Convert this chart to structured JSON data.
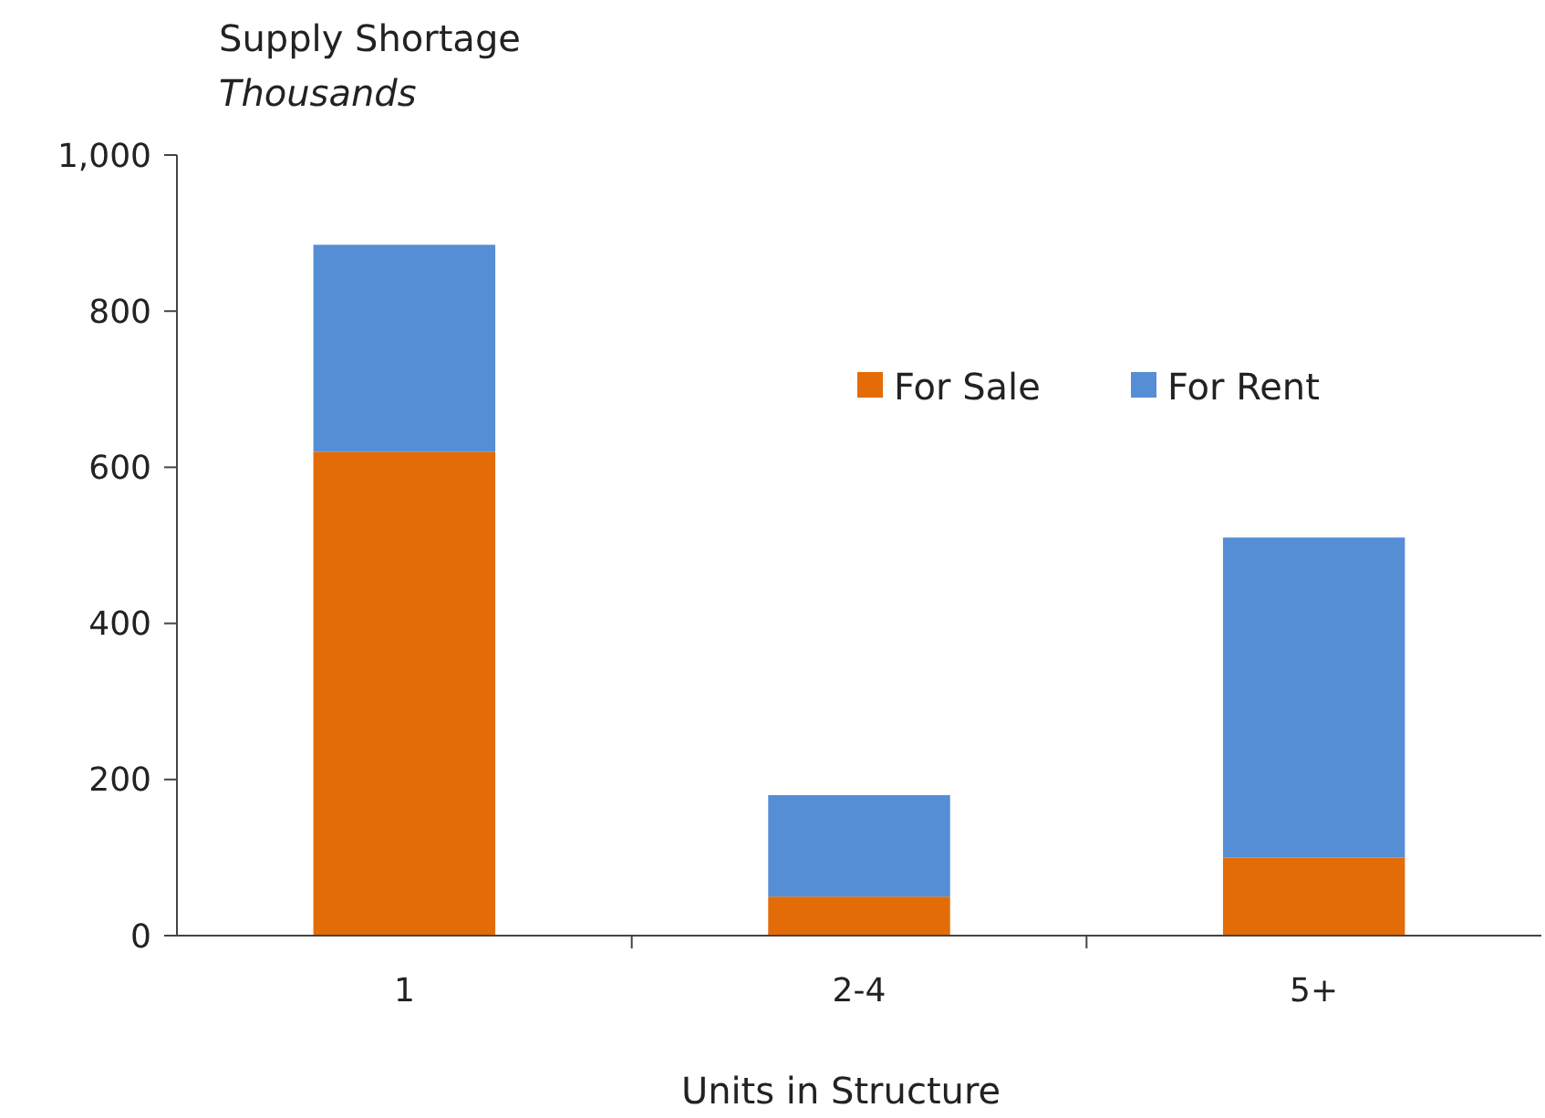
{
  "chart_data": {
    "type": "bar",
    "title": "Supply Shortage",
    "subtitle": "Thousands",
    "xlabel": "Units in Structure",
    "categories": [
      "1",
      "2-4",
      "5+"
    ],
    "stacked": true,
    "series": [
      {
        "name": "For Sale",
        "color": "#e36c09",
        "values": [
          620,
          50,
          100
        ]
      },
      {
        "name": "For Rent",
        "color": "#558ed5",
        "values": [
          265,
          130,
          410
        ]
      }
    ],
    "ylim": [
      0,
      1000
    ],
    "yticks": [
      0,
      200,
      400,
      600,
      800,
      {
        "value": 1000,
        "label": "1,000"
      }
    ],
    "grid": false,
    "legend": "top right"
  }
}
